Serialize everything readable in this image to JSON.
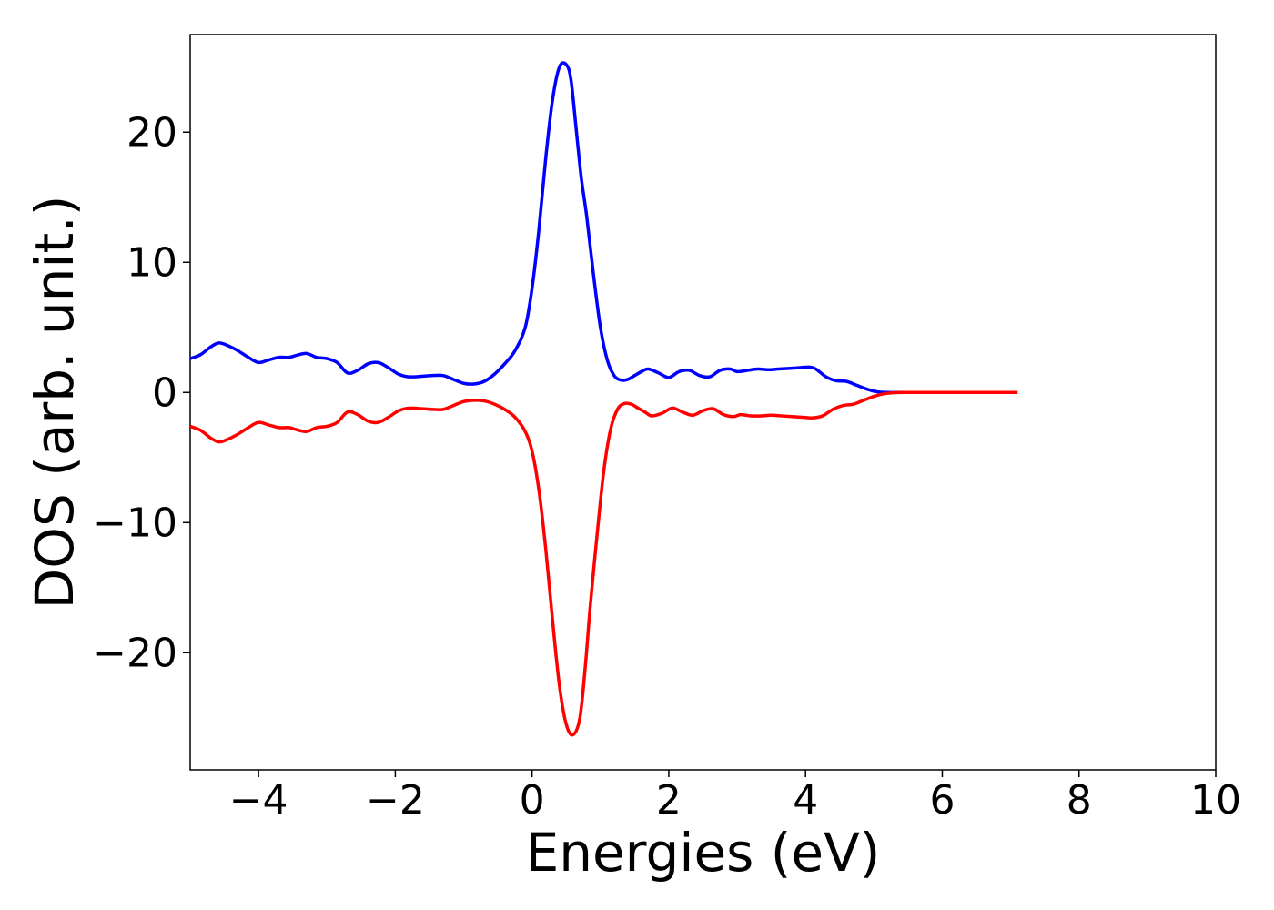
{
  "chart_data": {
    "type": "line",
    "title": "",
    "xlabel": "Energies (eV)",
    "ylabel": "DOS (arb. unit.)",
    "xlim": [
      -5,
      10
    ],
    "ylim": [
      -29,
      27.5
    ],
    "xticks": [
      -4,
      -2,
      0,
      2,
      4,
      6,
      8,
      10
    ],
    "yticks": [
      -20,
      -10,
      0,
      10,
      20
    ],
    "xtick_labels": [
      "−4",
      "−2",
      "0",
      "2",
      "4",
      "6",
      "8",
      "10"
    ],
    "ytick_labels": [
      "−20",
      "−10",
      "0",
      "10",
      "20"
    ],
    "grid": false,
    "legend": "none",
    "series": [
      {
        "color": "#0000ff",
        "x": [
          -5.0,
          -4.85,
          -4.7,
          -4.58,
          -4.45,
          -4.3,
          -4.15,
          -4.0,
          -3.85,
          -3.7,
          -3.55,
          -3.45,
          -3.3,
          -3.15,
          -3.0,
          -2.85,
          -2.7,
          -2.55,
          -2.4,
          -2.25,
          -2.1,
          -1.95,
          -1.8,
          -1.6,
          -1.45,
          -1.3,
          -1.15,
          -1.0,
          -0.85,
          -0.7,
          -0.55,
          -0.4,
          -0.25,
          -0.1,
          0.0,
          0.1,
          0.2,
          0.3,
          0.4,
          0.5,
          0.57,
          0.65,
          0.72,
          0.8,
          0.9,
          1.0,
          1.1,
          1.2,
          1.3,
          1.4,
          1.5,
          1.6,
          1.7,
          1.85,
          2.0,
          2.15,
          2.3,
          2.45,
          2.6,
          2.75,
          2.9,
          3.0,
          3.15,
          3.3,
          3.45,
          3.6,
          3.75,
          3.9,
          4.05,
          4.15,
          4.3,
          4.45,
          4.6,
          4.75,
          4.9,
          5.05,
          5.2,
          5.4,
          5.6,
          6.0,
          6.5,
          7.1
        ],
        "y": [
          2.6,
          2.9,
          3.5,
          3.8,
          3.6,
          3.2,
          2.7,
          2.3,
          2.5,
          2.7,
          2.7,
          2.85,
          3.0,
          2.7,
          2.6,
          2.3,
          1.5,
          1.7,
          2.2,
          2.3,
          1.9,
          1.4,
          1.2,
          1.25,
          1.3,
          1.3,
          1.0,
          0.7,
          0.65,
          0.85,
          1.4,
          2.2,
          3.2,
          5.0,
          8.0,
          12.5,
          18.0,
          22.5,
          25.0,
          25.2,
          24.0,
          20.0,
          16.5,
          13.5,
          9.0,
          5.0,
          2.5,
          1.3,
          0.95,
          1.0,
          1.3,
          1.6,
          1.8,
          1.5,
          1.15,
          1.6,
          1.7,
          1.3,
          1.2,
          1.7,
          1.8,
          1.6,
          1.7,
          1.8,
          1.75,
          1.8,
          1.85,
          1.9,
          1.95,
          1.8,
          1.2,
          0.9,
          0.85,
          0.55,
          0.25,
          0.05,
          0.0,
          0.0,
          0.0,
          0.0,
          0.0,
          0.0
        ]
      },
      {
        "color": "#ff0000",
        "x": [
          -5.0,
          -4.85,
          -4.7,
          -4.58,
          -4.45,
          -4.3,
          -4.15,
          -4.0,
          -3.85,
          -3.7,
          -3.55,
          -3.45,
          -3.3,
          -3.15,
          -3.0,
          -2.85,
          -2.7,
          -2.55,
          -2.4,
          -2.25,
          -2.1,
          -1.95,
          -1.8,
          -1.6,
          -1.45,
          -1.3,
          -1.15,
          -1.0,
          -0.85,
          -0.7,
          -0.55,
          -0.4,
          -0.25,
          -0.1,
          0.0,
          0.1,
          0.2,
          0.3,
          0.4,
          0.5,
          0.6,
          0.7,
          0.78,
          0.85,
          0.95,
          1.05,
          1.15,
          1.25,
          1.35,
          1.45,
          1.55,
          1.65,
          1.75,
          1.9,
          2.05,
          2.2,
          2.35,
          2.5,
          2.65,
          2.8,
          2.95,
          3.05,
          3.2,
          3.35,
          3.5,
          3.65,
          3.8,
          3.95,
          4.1,
          4.25,
          4.4,
          4.55,
          4.7,
          4.85,
          5.0,
          5.15,
          5.3,
          5.5,
          5.8,
          6.2,
          6.7,
          7.1
        ],
        "y": [
          -2.6,
          -2.9,
          -3.5,
          -3.8,
          -3.6,
          -3.2,
          -2.7,
          -2.3,
          -2.5,
          -2.7,
          -2.7,
          -2.85,
          -3.0,
          -2.7,
          -2.6,
          -2.3,
          -1.5,
          -1.7,
          -2.2,
          -2.3,
          -1.9,
          -1.4,
          -1.2,
          -1.25,
          -1.3,
          -1.3,
          -1.0,
          -0.7,
          -0.6,
          -0.65,
          -0.9,
          -1.3,
          -1.9,
          -3.0,
          -4.5,
          -7.5,
          -12.0,
          -17.5,
          -22.5,
          -25.5,
          -26.3,
          -25.0,
          -21.0,
          -16.5,
          -11.0,
          -6.0,
          -2.8,
          -1.3,
          -0.85,
          -0.9,
          -1.2,
          -1.5,
          -1.8,
          -1.6,
          -1.2,
          -1.5,
          -1.75,
          -1.4,
          -1.25,
          -1.7,
          -1.85,
          -1.7,
          -1.8,
          -1.8,
          -1.75,
          -1.8,
          -1.85,
          -1.9,
          -1.95,
          -1.8,
          -1.3,
          -1.0,
          -0.9,
          -0.6,
          -0.3,
          -0.1,
          -0.02,
          0.0,
          0.0,
          0.0,
          0.0,
          0.0
        ]
      }
    ]
  }
}
